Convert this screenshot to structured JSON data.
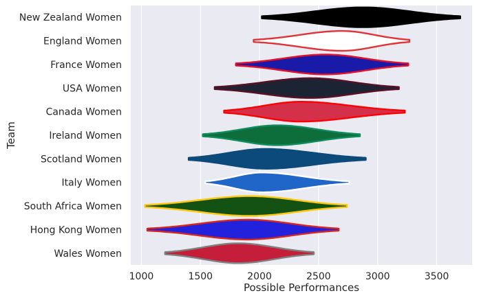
{
  "chart_data": {
    "type": "violin",
    "xlabel": "Possible Performances",
    "ylabel": "Team",
    "xlim": [
      910,
      3800
    ],
    "xticks": [
      1000,
      1500,
      2000,
      2500,
      3000,
      3500
    ],
    "grid": true,
    "background": "#eaeaf2",
    "categories": [
      "New Zealand Women",
      "England Women",
      "France Women",
      "USA Women",
      "Canada Women",
      "Ireland Women",
      "Scotland Women",
      "Italy Women",
      "South Africa Women",
      "Hong Kong Women",
      "Wales Women"
    ],
    "series": [
      {
        "min": 2020,
        "max": 3700,
        "peak": 2880,
        "fill": "#000000",
        "line": "#000000"
      },
      {
        "min": 1950,
        "max": 3270,
        "peak": 2700,
        "fill": "#ffffff",
        "line": "#e03237"
      },
      {
        "min": 1800,
        "max": 3260,
        "peak": 2560,
        "fill": "#1a1aa8",
        "line": "#e4102a"
      },
      {
        "min": 1620,
        "max": 3180,
        "peak": 2430,
        "fill": "#1c2433",
        "line": "#5a1024"
      },
      {
        "min": 1700,
        "max": 3230,
        "peak": 2350,
        "fill": "#d4304a",
        "line": "#ff0000"
      },
      {
        "min": 1520,
        "max": 2850,
        "peak": 2150,
        "fill": "#0d6e3c",
        "line": "#0f8b5e"
      },
      {
        "min": 1400,
        "max": 2900,
        "peak": 2050,
        "fill": "#0b4a7a",
        "line": "#0b4a7a"
      },
      {
        "min": 1540,
        "max": 2760,
        "peak": 2020,
        "fill": "#1f66c8",
        "line": "#ffffff"
      },
      {
        "min": 1030,
        "max": 2740,
        "peak": 1920,
        "fill": "#145214",
        "line": "#ffc80a"
      },
      {
        "min": 1050,
        "max": 2670,
        "peak": 1900,
        "fill": "#2222dd",
        "line": "#d7261e"
      },
      {
        "min": 1200,
        "max": 2460,
        "peak": 1820,
        "fill": "#c41e3a",
        "line": "#808080"
      }
    ]
  }
}
